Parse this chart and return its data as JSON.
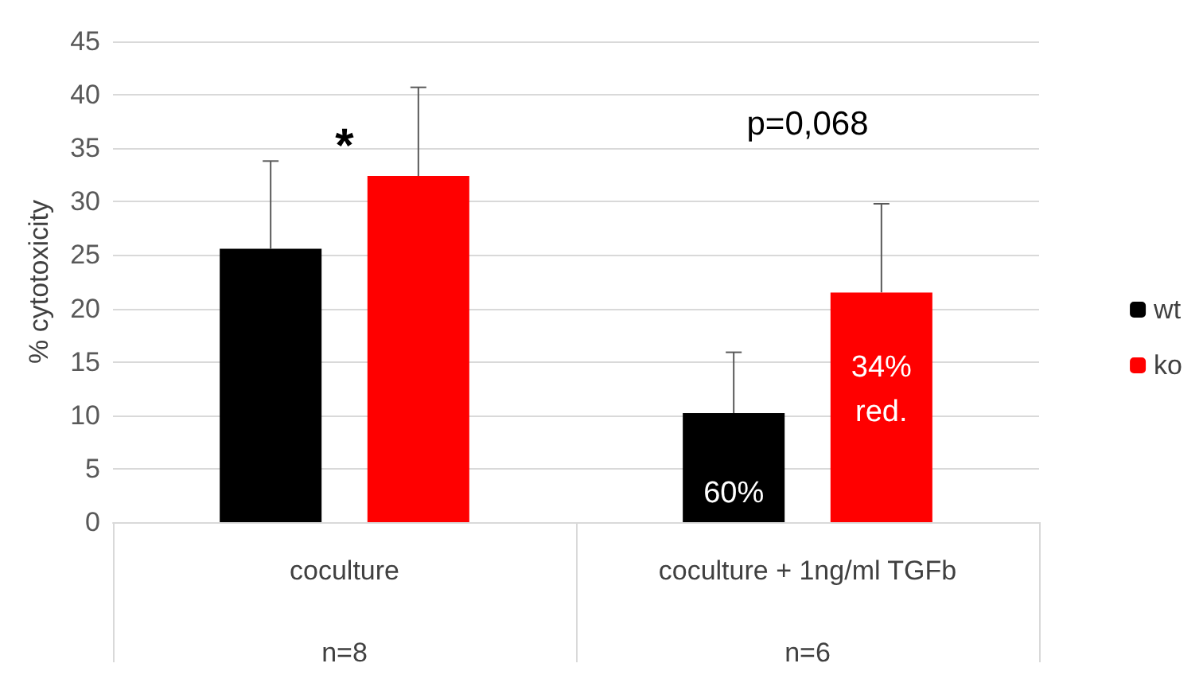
{
  "chart_data": {
    "type": "bar",
    "ylabel": "% cytotoxicity",
    "categories": [
      "coculture",
      "coculture + 1ng/ml TGFb"
    ],
    "series": [
      {
        "name": "wt",
        "color": "#000000",
        "values": [
          25.6,
          10.2
        ],
        "errors": [
          [
            25.6,
            33.8
          ],
          [
            10.2,
            15.9
          ]
        ]
      },
      {
        "name": "ko",
        "color": "#ff0000",
        "values": [
          32.4,
          21.5
        ],
        "errors": [
          [
            32.4,
            40.7
          ],
          [
            21.5,
            29.8
          ]
        ]
      }
    ],
    "ylim": [
      0,
      45
    ],
    "yticks": [
      0,
      5,
      10,
      15,
      20,
      25,
      30,
      35,
      40,
      45
    ],
    "grid": "y",
    "legend": "right",
    "annotations": [
      "*",
      "p=0,068",
      "n=8",
      "n=6",
      "60%",
      "34%\nred."
    ]
  }
}
